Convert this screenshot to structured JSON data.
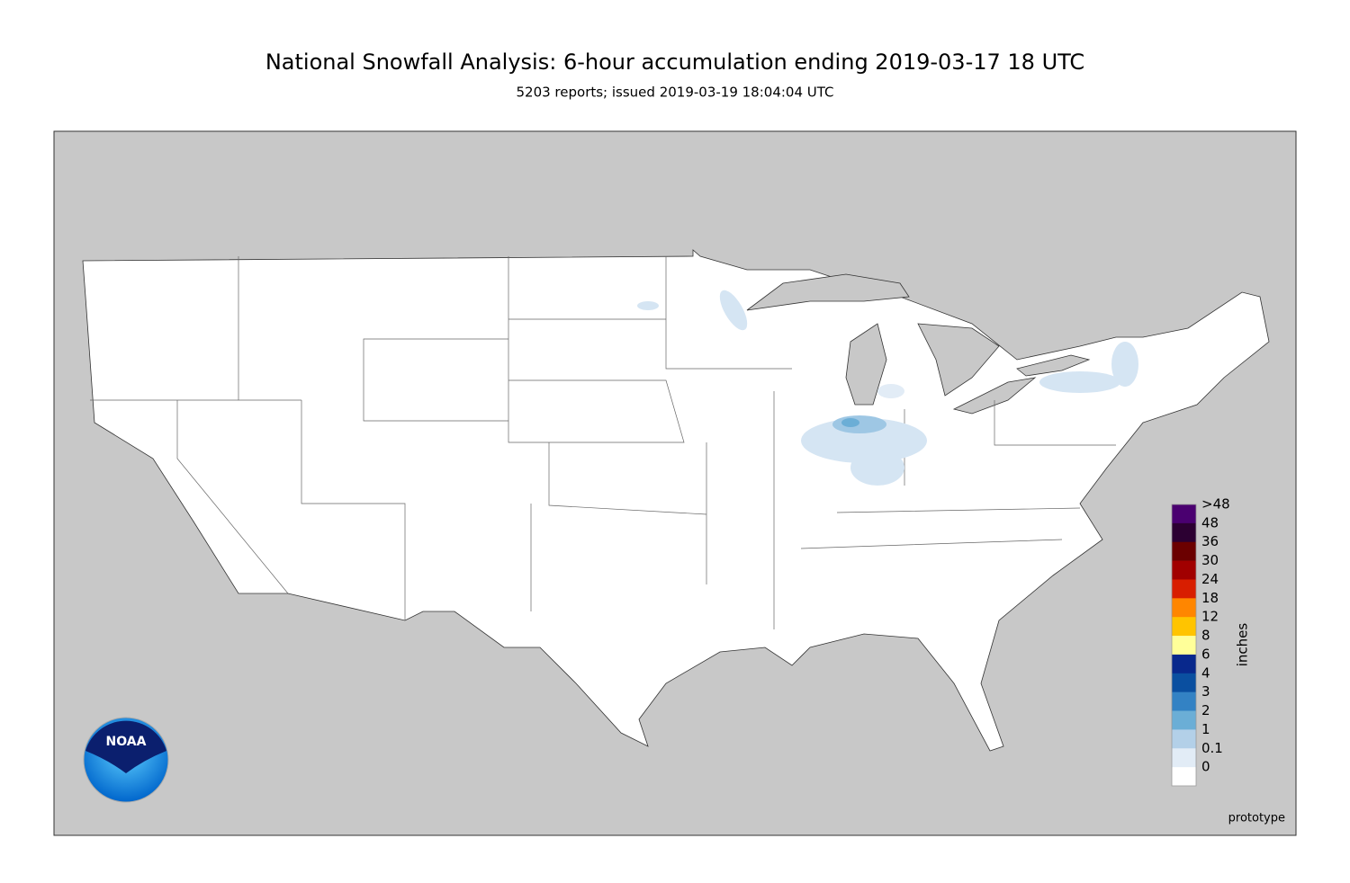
{
  "header": {
    "title": "National Snowfall Analysis: 6-hour accumulation ending 2019-03-17 18 UTC",
    "subtitle": "5203 reports; issued 2019-03-19 18:04:04 UTC"
  },
  "legend": {
    "title": "inches",
    "bins": [
      {
        "label": ">48",
        "color": "#4a0070"
      },
      {
        "label": "48",
        "color": "#2c0032"
      },
      {
        "label": "36",
        "color": "#6b0000"
      },
      {
        "label": "30",
        "color": "#a10000"
      },
      {
        "label": "24",
        "color": "#d81e00"
      },
      {
        "label": "18",
        "color": "#ff8600"
      },
      {
        "label": "12",
        "color": "#ffc400"
      },
      {
        "label": "8",
        "color": "#ffff99"
      },
      {
        "label": "6",
        "color": "#08288c"
      },
      {
        "label": "4",
        "color": "#0a4fa0"
      },
      {
        "label": "3",
        "color": "#3382c4"
      },
      {
        "label": "2",
        "color": "#6baed6"
      },
      {
        "label": "1",
        "color": "#b3d0e8"
      },
      {
        "label": "0.1",
        "color": "#e2ecf6"
      },
      {
        "label": "0",
        "color": "#ffffff"
      }
    ]
  },
  "logo": {
    "text": "NOAA"
  },
  "footer": {
    "note": "prototype"
  }
}
